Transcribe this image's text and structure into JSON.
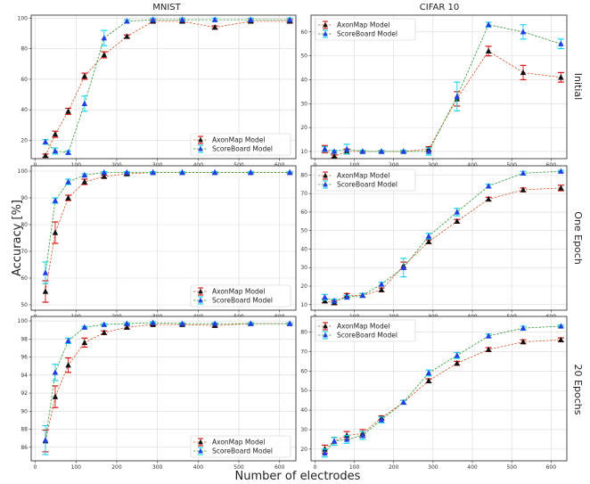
{
  "figure": {
    "xlabel": "Number of electrodes",
    "ylabel": "Accuracy [%]"
  },
  "columns": [
    "MNIST",
    "CIFAR 10"
  ],
  "rows": [
    "Initial",
    "One Epoch",
    "20 Epochs"
  ],
  "colors": {
    "axonmap_marker": "#111111",
    "axonmap_err": "#dd1111",
    "axonmap_line": "#d65a2a",
    "scoreboard_marker": "#1f3fe0",
    "scoreboard_err": "#11d6ee",
    "scoreboard_line": "#2e9a33",
    "grid": "#d9d9d9",
    "frame": "#222222"
  },
  "chart_data": [
    {
      "type": "line",
      "row": "Initial",
      "column": "MNIST",
      "x": [
        25,
        49,
        81,
        121,
        169,
        225,
        289,
        361,
        441,
        529,
        625
      ],
      "ylim": [
        8,
        102
      ],
      "yticks": [
        20,
        40,
        60,
        80,
        100
      ],
      "xlim": [
        -10,
        640
      ],
      "xticks": [
        0,
        100,
        200,
        300,
        400,
        500,
        600
      ],
      "legend": "lower-right",
      "series": [
        {
          "name": "AxonMap Model",
          "values": [
            10,
            24,
            39,
            62,
            76,
            88,
            98,
            98,
            94,
            98,
            98
          ],
          "err": [
            1,
            2,
            2,
            2,
            2,
            1,
            1,
            1,
            1,
            1,
            1
          ]
        },
        {
          "name": "ScoreBoard Model",
          "values": [
            19,
            13,
            12,
            44,
            87,
            98,
            99,
            99,
            99,
            99,
            99
          ],
          "err": [
            1.5,
            2,
            1,
            5,
            5,
            1,
            1,
            1,
            1,
            1,
            1
          ]
        }
      ]
    },
    {
      "type": "line",
      "row": "Initial",
      "column": "CIFAR 10",
      "x": [
        25,
        49,
        81,
        121,
        169,
        225,
        289,
        361,
        441,
        529,
        625
      ],
      "ylim": [
        7,
        67
      ],
      "yticks": [
        10,
        20,
        30,
        40,
        50,
        60
      ],
      "xlim": [
        -10,
        640
      ],
      "xticks": [
        0,
        100,
        200,
        300,
        400,
        500,
        600
      ],
      "legend": "top-left",
      "series": [
        {
          "name": "AxonMap Model",
          "values": [
            11,
            8,
            10,
            10,
            10,
            10,
            11,
            32,
            52,
            43,
            41
          ],
          "err": [
            1.5,
            0.5,
            1,
            0.5,
            0.5,
            0.5,
            1,
            3,
            2,
            3,
            2
          ]
        },
        {
          "name": "ScoreBoard Model",
          "values": [
            11,
            10,
            11,
            10,
            10,
            10,
            10,
            33,
            63,
            60,
            55
          ],
          "err": [
            1,
            0.5,
            2,
            0.5,
            0.5,
            0.5,
            1.5,
            6,
            1,
            3,
            2
          ]
        }
      ]
    },
    {
      "type": "line",
      "row": "One Epoch",
      "column": "MNIST",
      "x": [
        25,
        49,
        81,
        121,
        169,
        225,
        289,
        361,
        441,
        529,
        625
      ],
      "ylim": [
        48,
        102
      ],
      "yticks": [
        50,
        60,
        70,
        80,
        90,
        100
      ],
      "xlim": [
        -10,
        640
      ],
      "xticks": [
        0,
        100,
        200,
        300,
        400,
        500,
        600
      ],
      "legend": "lower-right",
      "series": [
        {
          "name": "AxonMap Model",
          "values": [
            55,
            77,
            90,
            96,
            98,
            99,
            99.5,
            99.5,
            99.5,
            99.5,
            99.5
          ],
          "err": [
            4,
            4,
            1,
            1,
            0.5,
            0.5,
            0.3,
            0.3,
            0.3,
            0.3,
            0.3
          ]
        },
        {
          "name": "ScoreBoard Model",
          "values": [
            62,
            89,
            96,
            98.5,
            99.5,
            99.5,
            99.5,
            99.5,
            99.5,
            99.5,
            99.5
          ],
          "err": [
            4,
            1,
            1,
            0.5,
            0.3,
            0.3,
            0.3,
            0.3,
            0.3,
            0.3,
            0.3
          ]
        }
      ]
    },
    {
      "type": "line",
      "row": "One Epoch",
      "column": "CIFAR 10",
      "x": [
        25,
        49,
        81,
        121,
        169,
        225,
        289,
        361,
        441,
        529,
        625
      ],
      "ylim": [
        7,
        85
      ],
      "yticks": [
        10,
        20,
        30,
        40,
        50,
        60,
        70,
        80
      ],
      "xlim": [
        -10,
        640
      ],
      "xticks": [
        0,
        100,
        200,
        300,
        400,
        500,
        600
      ],
      "legend": "top-left",
      "series": [
        {
          "name": "AxonMap Model",
          "values": [
            12,
            11,
            15,
            15,
            18,
            31,
            44,
            55,
            67,
            72,
            73
          ],
          "err": [
            1,
            1,
            1,
            1,
            1,
            2,
            1,
            1,
            1,
            1,
            1.5
          ]
        },
        {
          "name": "ScoreBoard Model",
          "values": [
            14,
            12,
            14,
            15,
            21,
            30,
            47,
            60,
            74,
            81,
            82
          ],
          "err": [
            1.5,
            1,
            1,
            1,
            1,
            5,
            1.5,
            2,
            1,
            1,
            0.5
          ]
        }
      ]
    },
    {
      "type": "line",
      "row": "20 Epochs",
      "column": "MNIST",
      "x": [
        25,
        49,
        81,
        121,
        169,
        225,
        289,
        361,
        441,
        529,
        625
      ],
      "ylim": [
        84.5,
        100.5
      ],
      "yticks": [
        86,
        88,
        90,
        92,
        94,
        96,
        98,
        100
      ],
      "xlim": [
        -10,
        640
      ],
      "xticks": [
        0,
        100,
        200,
        300,
        400,
        500,
        600
      ],
      "legend": "lower-right",
      "series": [
        {
          "name": "AxonMap Model",
          "values": [
            86.7,
            91.6,
            95.1,
            97.6,
            98.7,
            99.3,
            99.6,
            99.6,
            99.5,
            99.7,
            99.7
          ],
          "err": [
            1.2,
            1.2,
            0.8,
            0.5,
            0.2,
            0.2,
            0.1,
            0.1,
            0.2,
            0.1,
            0.1
          ]
        },
        {
          "name": "ScoreBoard Model",
          "values": [
            86.8,
            94.3,
            97.8,
            99.3,
            99.6,
            99.7,
            99.8,
            99.7,
            99.7,
            99.7,
            99.7
          ],
          "err": [
            1.6,
            0.9,
            0.3,
            0.1,
            0.1,
            0.1,
            0.1,
            0.1,
            0.1,
            0.1,
            0.1
          ]
        }
      ]
    },
    {
      "type": "line",
      "row": "20 Epochs",
      "column": "CIFAR 10",
      "x": [
        25,
        49,
        81,
        121,
        169,
        225,
        289,
        361,
        441,
        529,
        625
      ],
      "ylim": [
        14,
        88
      ],
      "yticks": [
        20,
        30,
        40,
        50,
        60,
        70,
        80
      ],
      "xlim": [
        -10,
        640
      ],
      "xticks": [
        0,
        100,
        200,
        300,
        400,
        500,
        600
      ],
      "legend": "top-left",
      "series": [
        {
          "name": "AxonMap Model",
          "values": [
            20,
            24,
            27,
            28,
            36,
            44,
            55,
            64,
            71,
            75,
            76
          ],
          "err": [
            2,
            2,
            2,
            2,
            1,
            1,
            1,
            1,
            1,
            1,
            1
          ]
        },
        {
          "name": "ScoreBoard Model",
          "values": [
            18,
            24,
            25,
            27,
            35,
            44,
            59,
            68,
            78,
            82,
            83
          ],
          "err": [
            2,
            2,
            2,
            2,
            1.5,
            1,
            1.5,
            1.5,
            1,
            1,
            0.5
          ]
        }
      ]
    }
  ]
}
